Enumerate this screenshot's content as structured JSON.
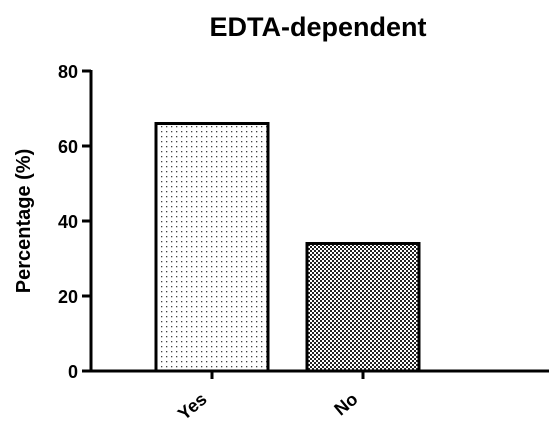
{
  "chart_data": {
    "type": "bar",
    "title": "EDTA-dependent",
    "xlabel": "",
    "ylabel": "Percentage (%)",
    "categories": [
      "Yes",
      "No"
    ],
    "values": [
      66,
      34
    ],
    "ylim": [
      0,
      80
    ],
    "yticks": [
      0,
      20,
      40,
      60,
      80
    ],
    "grid": false,
    "fills": [
      "sparse-dots",
      "dense-checker"
    ]
  }
}
